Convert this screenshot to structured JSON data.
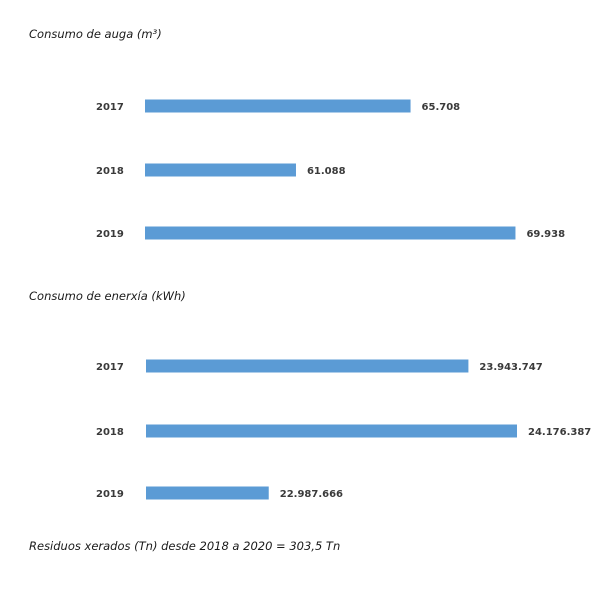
{
  "chart_data": [
    {
      "type": "bar",
      "orientation": "horizontal",
      "title": "Consumo de auga (m³)",
      "categories": [
        "2017",
        "2018",
        "2019"
      ],
      "values": [
        65708,
        61088,
        69938
      ],
      "value_labels": [
        "65.708",
        "61.088",
        "69.938"
      ],
      "xlim": [
        55000,
        70000
      ],
      "grid": false,
      "color": "#5b9bd5"
    },
    {
      "type": "bar",
      "orientation": "horizontal",
      "title": "Consumo de enerxía (kWh)",
      "categories": [
        "2017",
        "2018",
        "2019"
      ],
      "values": [
        23943747,
        24176387,
        22987666
      ],
      "value_labels": [
        "23.943.747",
        "24.176.387",
        "22.987.666"
      ],
      "xlim": [
        22400000,
        24176387
      ],
      "grid": false,
      "color": "#5b9bd5"
    }
  ],
  "footer": "Residuos xerados (Tn) desde 2018 a 2020 = 303,5 Tn"
}
